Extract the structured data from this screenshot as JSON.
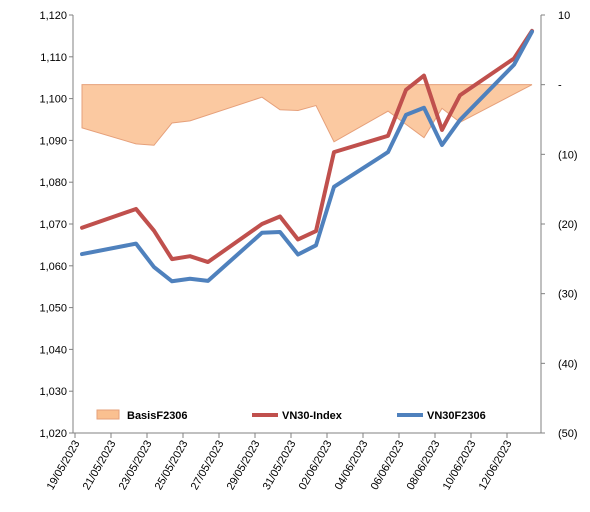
{
  "chart_data": {
    "type": "line",
    "title": "",
    "x": [
      "19/05/2023",
      "20/05/2023",
      "21/05/2023",
      "22/05/2023",
      "23/05/2023",
      "24/05/2023",
      "25/05/2023",
      "26/05/2023",
      "27/05/2023",
      "28/05/2023",
      "29/05/2023",
      "30/05/2023",
      "31/05/2023",
      "01/06/2023",
      "02/06/2023",
      "03/06/2023",
      "04/06/2023",
      "05/06/2023",
      "06/06/2023",
      "07/06/2023",
      "08/06/2023",
      "09/06/2023",
      "10/06/2023",
      "11/06/2023",
      "12/06/2023",
      "13/06/2023"
    ],
    "x_tick_labels": [
      "19/05/2023",
      "21/05/2023",
      "23/05/2023",
      "25/05/2023",
      "27/05/2023",
      "29/05/2023",
      "31/05/2023",
      "02/06/2023",
      "04/06/2023",
      "06/06/2023",
      "08/06/2023",
      "10/06/2023",
      "12/06/2023"
    ],
    "y_left": {
      "min": 1020,
      "max": 1120,
      "step": 10,
      "tick_labels": [
        "1,020",
        "1,030",
        "1,040",
        "1,050",
        "1,060",
        "1,070",
        "1,080",
        "1,090",
        "1,100",
        "1,110",
        "1,120"
      ]
    },
    "y_right": {
      "min": -50,
      "max": 10,
      "step": 10,
      "tick_labels": [
        "(50)",
        "(40)",
        "(30)",
        "(20)",
        "(10)",
        "-",
        "10"
      ]
    },
    "series": [
      {
        "name": "BasisF2306",
        "type": "area",
        "axis": "right",
        "color": "#FAC090",
        "edge_color": "#E6A07A",
        "points": [
          [
            "19/05/2023",
            -6.2
          ],
          [
            "22/05/2023",
            -8.5
          ],
          [
            "23/05/2023",
            -8.7
          ],
          [
            "24/05/2023",
            -5.5
          ],
          [
            "25/05/2023",
            -5.2
          ],
          [
            "29/05/2023",
            -1.8
          ],
          [
            "30/05/2023",
            -3.6
          ],
          [
            "31/05/2023",
            -3.7
          ],
          [
            "01/06/2023",
            -3.0
          ],
          [
            "02/06/2023",
            -8.2
          ],
          [
            "05/06/2023",
            -3.8
          ],
          [
            "06/06/2023",
            -5.7
          ],
          [
            "07/06/2023",
            -7.6
          ],
          [
            "08/06/2023",
            -3.4
          ],
          [
            "09/06/2023",
            -5.4
          ],
          [
            "13/06/2023",
            0.0
          ]
        ]
      },
      {
        "name": "VN30-Index",
        "type": "line",
        "axis": "left",
        "color": "#C0504D",
        "points": [
          [
            "19/05/2023",
            1069.1
          ],
          [
            "22/05/2023",
            1073.6
          ],
          [
            "23/05/2023",
            1068.4
          ],
          [
            "24/05/2023",
            1061.6
          ],
          [
            "25/05/2023",
            1062.3
          ],
          [
            "26/05/2023",
            1060.9
          ],
          [
            "29/05/2023",
            1070.0
          ],
          [
            "30/05/2023",
            1071.8
          ],
          [
            "31/05/2023",
            1066.3
          ],
          [
            "01/06/2023",
            1068.3
          ],
          [
            "02/06/2023",
            1087.2
          ],
          [
            "05/06/2023",
            1091.1
          ],
          [
            "06/06/2023",
            1102.1
          ],
          [
            "07/06/2023",
            1105.5
          ],
          [
            "08/06/2023",
            1092.5
          ],
          [
            "09/06/2023",
            1100.8
          ],
          [
            "12/06/2023",
            1109.6
          ],
          [
            "13/06/2023",
            1116.2
          ]
        ]
      },
      {
        "name": "VN30F2306",
        "type": "line",
        "axis": "left",
        "color": "#4F81BD",
        "points": [
          [
            "19/05/2023",
            1062.8
          ],
          [
            "22/05/2023",
            1065.3
          ],
          [
            "23/05/2023",
            1059.7
          ],
          [
            "24/05/2023",
            1056.3
          ],
          [
            "25/05/2023",
            1056.9
          ],
          [
            "26/05/2023",
            1056.4
          ],
          [
            "29/05/2023",
            1067.9
          ],
          [
            "30/05/2023",
            1068.1
          ],
          [
            "31/05/2023",
            1062.7
          ],
          [
            "01/06/2023",
            1064.9
          ],
          [
            "02/06/2023",
            1078.9
          ],
          [
            "05/06/2023",
            1087.2
          ],
          [
            "06/06/2023",
            1096.1
          ],
          [
            "07/06/2023",
            1097.8
          ],
          [
            "08/06/2023",
            1088.9
          ],
          [
            "09/06/2023",
            1094.9
          ],
          [
            "12/06/2023",
            1108.1
          ],
          [
            "13/06/2023",
            1116.0
          ]
        ]
      }
    ],
    "legend": {
      "placement": "bottom-inside",
      "entries": [
        "BasisF2306",
        "VN30-Index",
        "VN30F2306"
      ]
    },
    "grid": false
  }
}
